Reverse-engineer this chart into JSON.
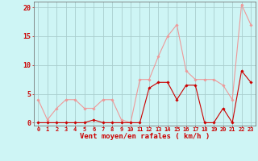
{
  "x": [
    0,
    1,
    2,
    3,
    4,
    5,
    6,
    7,
    8,
    9,
    10,
    11,
    12,
    13,
    14,
    15,
    16,
    17,
    18,
    19,
    20,
    21,
    22,
    23
  ],
  "wind_avg": [
    0,
    0,
    0,
    0,
    0,
    0,
    0.5,
    0,
    0,
    0,
    0,
    0,
    6,
    7,
    7,
    4,
    6.5,
    6.5,
    0,
    0,
    2.5,
    0,
    9,
    7
  ],
  "wind_gust": [
    4,
    0.5,
    2.5,
    4,
    4,
    2.5,
    2.5,
    4,
    4,
    0.5,
    0,
    7.5,
    7.5,
    11.5,
    15,
    17,
    9,
    7.5,
    7.5,
    7.5,
    6.5,
    4,
    20.5,
    17
  ],
  "bg_color": "#cef5f5",
  "grid_color": "#aacece",
  "line_avg_color": "#cc0000",
  "line_gust_color": "#ee9999",
  "xlabel": "Vent moyen/en rafales ( km/h )",
  "xlabel_color": "#cc0000",
  "ylabel_ticks": [
    0,
    5,
    10,
    15,
    20
  ],
  "ytick_labels": [
    "0",
    "5",
    "10",
    "15",
    "20"
  ],
  "ylim": [
    -0.5,
    21
  ],
  "xlim": [
    -0.5,
    23.5
  ],
  "tick_color": "#cc0000",
  "axis_color": "#777777",
  "ytick_fontsize": 6,
  "xtick_fontsize": 5,
  "xlabel_fontsize": 6.5
}
